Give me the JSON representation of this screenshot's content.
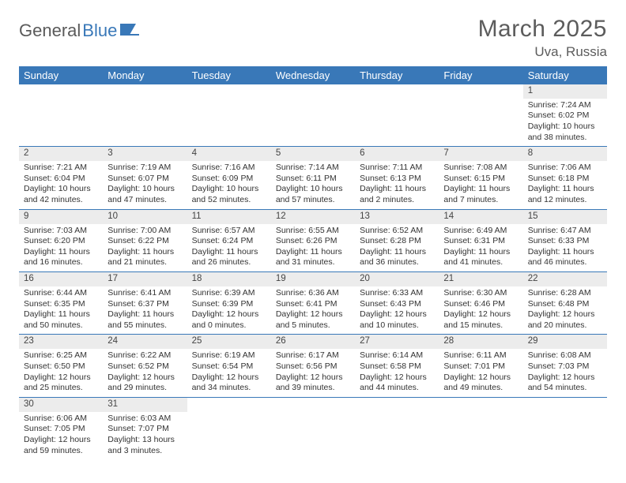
{
  "logo": {
    "text1": "General",
    "text2": "Blue"
  },
  "title": "March 2025",
  "location": "Uva, Russia",
  "colors": {
    "header_bg": "#3978b8",
    "header_fg": "#ffffff",
    "daynum_bg": "#ececec",
    "border": "#3978b8",
    "text": "#333333",
    "title_color": "#5c5c5c"
  },
  "typography": {
    "title_fontsize": 30,
    "location_fontsize": 17,
    "dayheader_fontsize": 13,
    "daynum_fontsize": 11.5,
    "body_fontsize": 10.5
  },
  "day_headers": [
    "Sunday",
    "Monday",
    "Tuesday",
    "Wednesday",
    "Thursday",
    "Friday",
    "Saturday"
  ],
  "weeks": [
    [
      null,
      null,
      null,
      null,
      null,
      null,
      {
        "n": "1",
        "sunrise": "Sunrise: 7:24 AM",
        "sunset": "Sunset: 6:02 PM",
        "daylight": "Daylight: 10 hours and 38 minutes."
      }
    ],
    [
      {
        "n": "2",
        "sunrise": "Sunrise: 7:21 AM",
        "sunset": "Sunset: 6:04 PM",
        "daylight": "Daylight: 10 hours and 42 minutes."
      },
      {
        "n": "3",
        "sunrise": "Sunrise: 7:19 AM",
        "sunset": "Sunset: 6:07 PM",
        "daylight": "Daylight: 10 hours and 47 minutes."
      },
      {
        "n": "4",
        "sunrise": "Sunrise: 7:16 AM",
        "sunset": "Sunset: 6:09 PM",
        "daylight": "Daylight: 10 hours and 52 minutes."
      },
      {
        "n": "5",
        "sunrise": "Sunrise: 7:14 AM",
        "sunset": "Sunset: 6:11 PM",
        "daylight": "Daylight: 10 hours and 57 minutes."
      },
      {
        "n": "6",
        "sunrise": "Sunrise: 7:11 AM",
        "sunset": "Sunset: 6:13 PM",
        "daylight": "Daylight: 11 hours and 2 minutes."
      },
      {
        "n": "7",
        "sunrise": "Sunrise: 7:08 AM",
        "sunset": "Sunset: 6:15 PM",
        "daylight": "Daylight: 11 hours and 7 minutes."
      },
      {
        "n": "8",
        "sunrise": "Sunrise: 7:06 AM",
        "sunset": "Sunset: 6:18 PM",
        "daylight": "Daylight: 11 hours and 12 minutes."
      }
    ],
    [
      {
        "n": "9",
        "sunrise": "Sunrise: 7:03 AM",
        "sunset": "Sunset: 6:20 PM",
        "daylight": "Daylight: 11 hours and 16 minutes."
      },
      {
        "n": "10",
        "sunrise": "Sunrise: 7:00 AM",
        "sunset": "Sunset: 6:22 PM",
        "daylight": "Daylight: 11 hours and 21 minutes."
      },
      {
        "n": "11",
        "sunrise": "Sunrise: 6:57 AM",
        "sunset": "Sunset: 6:24 PM",
        "daylight": "Daylight: 11 hours and 26 minutes."
      },
      {
        "n": "12",
        "sunrise": "Sunrise: 6:55 AM",
        "sunset": "Sunset: 6:26 PM",
        "daylight": "Daylight: 11 hours and 31 minutes."
      },
      {
        "n": "13",
        "sunrise": "Sunrise: 6:52 AM",
        "sunset": "Sunset: 6:28 PM",
        "daylight": "Daylight: 11 hours and 36 minutes."
      },
      {
        "n": "14",
        "sunrise": "Sunrise: 6:49 AM",
        "sunset": "Sunset: 6:31 PM",
        "daylight": "Daylight: 11 hours and 41 minutes."
      },
      {
        "n": "15",
        "sunrise": "Sunrise: 6:47 AM",
        "sunset": "Sunset: 6:33 PM",
        "daylight": "Daylight: 11 hours and 46 minutes."
      }
    ],
    [
      {
        "n": "16",
        "sunrise": "Sunrise: 6:44 AM",
        "sunset": "Sunset: 6:35 PM",
        "daylight": "Daylight: 11 hours and 50 minutes."
      },
      {
        "n": "17",
        "sunrise": "Sunrise: 6:41 AM",
        "sunset": "Sunset: 6:37 PM",
        "daylight": "Daylight: 11 hours and 55 minutes."
      },
      {
        "n": "18",
        "sunrise": "Sunrise: 6:39 AM",
        "sunset": "Sunset: 6:39 PM",
        "daylight": "Daylight: 12 hours and 0 minutes."
      },
      {
        "n": "19",
        "sunrise": "Sunrise: 6:36 AM",
        "sunset": "Sunset: 6:41 PM",
        "daylight": "Daylight: 12 hours and 5 minutes."
      },
      {
        "n": "20",
        "sunrise": "Sunrise: 6:33 AM",
        "sunset": "Sunset: 6:43 PM",
        "daylight": "Daylight: 12 hours and 10 minutes."
      },
      {
        "n": "21",
        "sunrise": "Sunrise: 6:30 AM",
        "sunset": "Sunset: 6:46 PM",
        "daylight": "Daylight: 12 hours and 15 minutes."
      },
      {
        "n": "22",
        "sunrise": "Sunrise: 6:28 AM",
        "sunset": "Sunset: 6:48 PM",
        "daylight": "Daylight: 12 hours and 20 minutes."
      }
    ],
    [
      {
        "n": "23",
        "sunrise": "Sunrise: 6:25 AM",
        "sunset": "Sunset: 6:50 PM",
        "daylight": "Daylight: 12 hours and 25 minutes."
      },
      {
        "n": "24",
        "sunrise": "Sunrise: 6:22 AM",
        "sunset": "Sunset: 6:52 PM",
        "daylight": "Daylight: 12 hours and 29 minutes."
      },
      {
        "n": "25",
        "sunrise": "Sunrise: 6:19 AM",
        "sunset": "Sunset: 6:54 PM",
        "daylight": "Daylight: 12 hours and 34 minutes."
      },
      {
        "n": "26",
        "sunrise": "Sunrise: 6:17 AM",
        "sunset": "Sunset: 6:56 PM",
        "daylight": "Daylight: 12 hours and 39 minutes."
      },
      {
        "n": "27",
        "sunrise": "Sunrise: 6:14 AM",
        "sunset": "Sunset: 6:58 PM",
        "daylight": "Daylight: 12 hours and 44 minutes."
      },
      {
        "n": "28",
        "sunrise": "Sunrise: 6:11 AM",
        "sunset": "Sunset: 7:01 PM",
        "daylight": "Daylight: 12 hours and 49 minutes."
      },
      {
        "n": "29",
        "sunrise": "Sunrise: 6:08 AM",
        "sunset": "Sunset: 7:03 PM",
        "daylight": "Daylight: 12 hours and 54 minutes."
      }
    ],
    [
      {
        "n": "30",
        "sunrise": "Sunrise: 6:06 AM",
        "sunset": "Sunset: 7:05 PM",
        "daylight": "Daylight: 12 hours and 59 minutes."
      },
      {
        "n": "31",
        "sunrise": "Sunrise: 6:03 AM",
        "sunset": "Sunset: 7:07 PM",
        "daylight": "Daylight: 13 hours and 3 minutes."
      },
      null,
      null,
      null,
      null,
      null
    ]
  ]
}
